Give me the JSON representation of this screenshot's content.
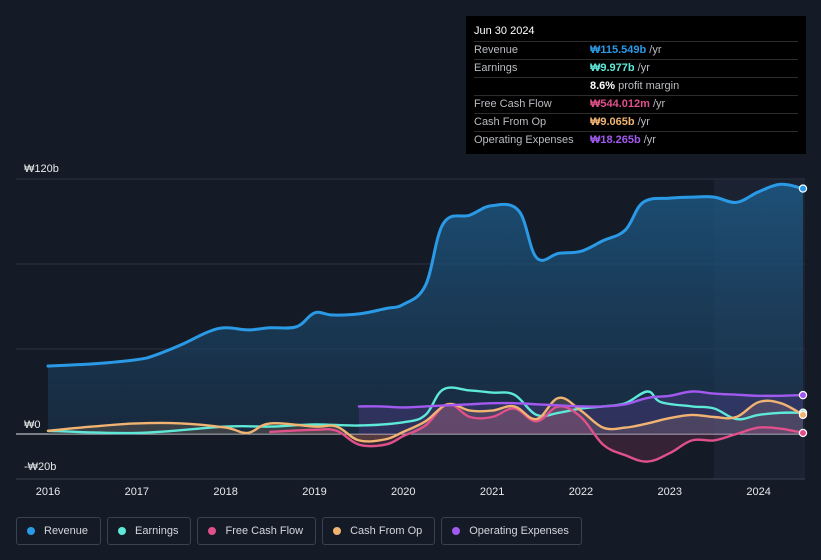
{
  "tooltip": {
    "date": "Jun 30 2024",
    "rows": [
      {
        "label": "Revenue",
        "value": "₩115.549b",
        "unit": "/yr",
        "color": "#2a9ae6"
      },
      {
        "label": "Earnings",
        "value": "₩9.977b",
        "unit": "/yr",
        "color": "#5ee8d8"
      },
      {
        "label": "Free Cash Flow",
        "value": "₩544.012m",
        "unit": "/yr",
        "color": "#e0508b"
      },
      {
        "label": "Cash From Op",
        "value": "₩9.065b",
        "unit": "/yr",
        "color": "#f0b372"
      },
      {
        "label": "Operating Expenses",
        "value": "₩18.265b",
        "unit": "/yr",
        "color": "#a259f0"
      }
    ],
    "margin_pct": "8.6%",
    "margin_label": "profit margin"
  },
  "legend": [
    {
      "label": "Revenue",
      "color": "#2a9ae6"
    },
    {
      "label": "Earnings",
      "color": "#5ee8d8"
    },
    {
      "label": "Free Cash Flow",
      "color": "#e0508b"
    },
    {
      "label": "Cash From Op",
      "color": "#f0b372"
    },
    {
      "label": "Operating Expenses",
      "color": "#a259f0"
    }
  ],
  "chart_data": {
    "type": "line",
    "unit": "₩ billions",
    "ylim": [
      -20,
      120
    ],
    "xlim": [
      2015.85,
      2024.5
    ],
    "y_tick_labels": [
      {
        "value": 120,
        "label": "₩120b"
      },
      {
        "value": 0,
        "label": "₩0"
      },
      {
        "value": -20,
        "label": "-₩20b"
      }
    ],
    "x_ticks": [
      2016,
      2017,
      2018,
      2019,
      2020,
      2021,
      2022,
      2023,
      2024
    ],
    "x_tick_labels": [
      "2016",
      "2017",
      "2018",
      "2019",
      "2020",
      "2021",
      "2022",
      "2023",
      "2024"
    ],
    "past_data_start": 2023.5,
    "series": [
      {
        "name": "Revenue",
        "color": "#2a9ae6",
        "fill": true,
        "points": [
          [
            2016.0,
            32
          ],
          [
            2016.5,
            33
          ],
          [
            2017.0,
            35
          ],
          [
            2017.2,
            37
          ],
          [
            2017.5,
            42
          ],
          [
            2017.8,
            48
          ],
          [
            2018.0,
            50
          ],
          [
            2018.25,
            49
          ],
          [
            2018.5,
            50
          ],
          [
            2018.8,
            50.5
          ],
          [
            2019.0,
            57
          ],
          [
            2019.2,
            56
          ],
          [
            2019.5,
            56.5
          ],
          [
            2019.8,
            59
          ],
          [
            2020.0,
            61
          ],
          [
            2020.25,
            70
          ],
          [
            2020.45,
            99
          ],
          [
            2020.75,
            103
          ],
          [
            2021.0,
            107.5
          ],
          [
            2021.3,
            105
          ],
          [
            2021.5,
            83
          ],
          [
            2021.75,
            85
          ],
          [
            2022.0,
            86
          ],
          [
            2022.25,
            91
          ],
          [
            2022.5,
            96
          ],
          [
            2022.7,
            109
          ],
          [
            2023.0,
            111
          ],
          [
            2023.25,
            111.5
          ],
          [
            2023.5,
            111.5
          ],
          [
            2023.75,
            109
          ],
          [
            2024.0,
            114
          ],
          [
            2024.25,
            117.5
          ],
          [
            2024.5,
            115.5
          ]
        ]
      },
      {
        "name": "Earnings",
        "color": "#5ee8d8",
        "fill": false,
        "points": [
          [
            2016.0,
            1.5
          ],
          [
            2017.0,
            0.5
          ],
          [
            2018.0,
            3.5
          ],
          [
            2018.5,
            3.5
          ],
          [
            2019.0,
            4.5
          ],
          [
            2019.5,
            4
          ],
          [
            2020.0,
            5.5
          ],
          [
            2020.25,
            9
          ],
          [
            2020.45,
            21
          ],
          [
            2020.75,
            20.5
          ],
          [
            2021.0,
            19.5
          ],
          [
            2021.25,
            18.5
          ],
          [
            2021.5,
            9
          ],
          [
            2021.75,
            10
          ],
          [
            2022.0,
            12
          ],
          [
            2022.25,
            13
          ],
          [
            2022.5,
            14.5
          ],
          [
            2022.75,
            20
          ],
          [
            2022.9,
            15
          ],
          [
            2023.25,
            13
          ],
          [
            2023.5,
            12
          ],
          [
            2023.75,
            7
          ],
          [
            2024.0,
            9
          ],
          [
            2024.25,
            10
          ],
          [
            2024.5,
            10
          ]
        ]
      },
      {
        "name": "Free Cash Flow",
        "color": "#e0508b",
        "fill": true,
        "points": [
          [
            2018.5,
            1
          ],
          [
            2019.0,
            2
          ],
          [
            2019.25,
            1.5
          ],
          [
            2019.5,
            -5
          ],
          [
            2019.8,
            -5
          ],
          [
            2020.0,
            -1
          ],
          [
            2020.25,
            4
          ],
          [
            2020.5,
            14
          ],
          [
            2020.75,
            8
          ],
          [
            2021.0,
            8
          ],
          [
            2021.25,
            12
          ],
          [
            2021.5,
            6
          ],
          [
            2021.75,
            13
          ],
          [
            2022.0,
            8
          ],
          [
            2022.25,
            -5
          ],
          [
            2022.5,
            -10
          ],
          [
            2022.75,
            -13
          ],
          [
            2023.0,
            -9
          ],
          [
            2023.25,
            -3
          ],
          [
            2023.5,
            -3
          ],
          [
            2023.75,
            0
          ],
          [
            2024.0,
            3
          ],
          [
            2024.25,
            2.5
          ],
          [
            2024.5,
            0.5
          ]
        ]
      },
      {
        "name": "Cash From Op",
        "color": "#f0b372",
        "fill": true,
        "points": [
          [
            2016.0,
            1.5
          ],
          [
            2016.5,
            3.5
          ],
          [
            2017.0,
            5
          ],
          [
            2017.5,
            5
          ],
          [
            2018.0,
            3
          ],
          [
            2018.25,
            0.5
          ],
          [
            2018.5,
            5
          ],
          [
            2019.0,
            3.5
          ],
          [
            2019.25,
            3.5
          ],
          [
            2019.5,
            -3
          ],
          [
            2019.8,
            -2.5
          ],
          [
            2020.0,
            1
          ],
          [
            2020.25,
            6
          ],
          [
            2020.5,
            14
          ],
          [
            2020.75,
            11
          ],
          [
            2021.0,
            11
          ],
          [
            2021.25,
            13
          ],
          [
            2021.5,
            7
          ],
          [
            2021.75,
            17
          ],
          [
            2022.0,
            11
          ],
          [
            2022.25,
            3
          ],
          [
            2022.5,
            3
          ],
          [
            2022.75,
            5
          ],
          [
            2023.0,
            7.5
          ],
          [
            2023.25,
            9
          ],
          [
            2023.5,
            8
          ],
          [
            2023.75,
            8
          ],
          [
            2024.0,
            15
          ],
          [
            2024.25,
            14.5
          ],
          [
            2024.5,
            9
          ]
        ]
      },
      {
        "name": "Operating Expenses",
        "color": "#a259f0",
        "fill": true,
        "points": [
          [
            2019.5,
            13
          ],
          [
            2019.75,
            13
          ],
          [
            2020.0,
            12.5
          ],
          [
            2020.25,
            13
          ],
          [
            2020.5,
            13.5
          ],
          [
            2020.75,
            14
          ],
          [
            2021.0,
            14.5
          ],
          [
            2021.25,
            14.5
          ],
          [
            2021.5,
            14
          ],
          [
            2021.75,
            13.5
          ],
          [
            2022.0,
            13
          ],
          [
            2022.25,
            13
          ],
          [
            2022.5,
            14
          ],
          [
            2022.75,
            17
          ],
          [
            2023.0,
            18
          ],
          [
            2023.25,
            20
          ],
          [
            2023.5,
            19
          ],
          [
            2023.75,
            18.5
          ],
          [
            2024.0,
            18
          ],
          [
            2024.25,
            18
          ],
          [
            2024.5,
            18.3
          ]
        ]
      }
    ]
  }
}
